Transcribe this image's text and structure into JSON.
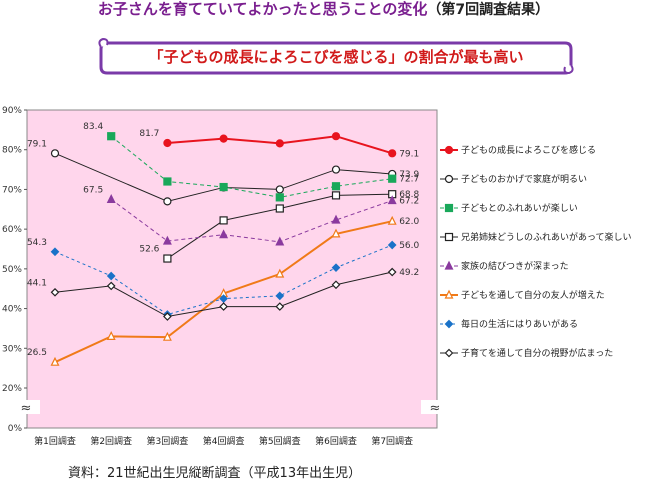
{
  "title": "お子さんを育てていてよかったと思うことの変化",
  "title_suffix": "（第7回調査結果）",
  "banner": "「子どもの成長によろこびを感じる」の割合が最も高い",
  "source": "資料：21世紀出生児縦断調査（平成13年出生児）",
  "colors": {
    "plot_bg": "#ffd6ec",
    "banner_border": "#7a3aa8"
  },
  "chart_data": {
    "type": "line",
    "categories": [
      "第1回調査",
      "第2回調査",
      "第3回調査",
      "第4回調査",
      "第5回調査",
      "第6回調査",
      "第7回調査"
    ],
    "y_ticks": [
      "0%",
      "20%",
      "30%",
      "40%",
      "50%",
      "60%",
      "70%",
      "80%",
      "90%"
    ],
    "axis_break": "≈",
    "ylim": [
      0,
      90
    ],
    "grid": false,
    "legend_position": "right",
    "series": [
      {
        "name": "子どもの成長によろこびを感じる",
        "color": "#e8141e",
        "marker": "circle-filled",
        "dash": "",
        "values": [
          null,
          null,
          81.7,
          82.8,
          81.6,
          83.4,
          79.1
        ],
        "labels": [
          null,
          null,
          "81.7",
          null,
          null,
          null,
          "79.1"
        ]
      },
      {
        "name": "子どものおかげで家庭が明るい",
        "color": "#222222",
        "marker": "circle-open",
        "dash": "",
        "values": [
          79.1,
          null,
          67.0,
          70.5,
          70.0,
          75.0,
          73.9
        ],
        "labels": [
          "79.1",
          null,
          null,
          null,
          null,
          null,
          "73.9"
        ]
      },
      {
        "name": "子どもとのふれあいが楽しい",
        "color": "#19a85a",
        "marker": "square-filled",
        "dash": "4,3",
        "values": [
          null,
          83.4,
          72.0,
          70.6,
          68.0,
          70.8,
          72.7
        ],
        "labels": [
          null,
          "83.4",
          null,
          null,
          null,
          null,
          "72.7"
        ]
      },
      {
        "name": "兄弟姉妹どうしのふれあいがあって楽しい",
        "color": "#222222",
        "marker": "square-open",
        "dash": "",
        "values": [
          null,
          null,
          52.6,
          62.2,
          65.2,
          68.5,
          68.8
        ],
        "labels": [
          null,
          null,
          "52.6",
          null,
          null,
          null,
          "68.8"
        ]
      },
      {
        "name": "家族の結びつきが深まった",
        "color": "#8a3a9e",
        "marker": "triangle-filled",
        "dash": "4,3",
        "values": [
          null,
          67.5,
          57.0,
          58.6,
          56.8,
          62.3,
          67.2
        ],
        "labels": [
          null,
          "67.5",
          null,
          null,
          null,
          null,
          "67.2"
        ]
      },
      {
        "name": "子どもを通して自分の友人が増えた",
        "color": "#f07a18",
        "marker": "triangle-open",
        "dash": "",
        "values": [
          26.5,
          33.0,
          32.8,
          43.8,
          48.7,
          58.8,
          62.0
        ],
        "labels": [
          "26.5",
          null,
          null,
          null,
          null,
          null,
          "62.0"
        ]
      },
      {
        "name": "毎日の生活にはりあいがある",
        "color": "#1a72c8",
        "marker": "diamond-filled",
        "dash": "3,3",
        "values": [
          54.3,
          48.2,
          38.5,
          42.5,
          43.2,
          50.3,
          56.0
        ],
        "labels": [
          "54.3",
          null,
          null,
          null,
          null,
          null,
          "56.0"
        ]
      },
      {
        "name": "子育てを通して自分の視野が広まった",
        "color": "#222222",
        "marker": "diamond-open",
        "dash": "",
        "values": [
          44.1,
          45.7,
          38.0,
          40.5,
          40.5,
          46.0,
          49.2
        ],
        "labels": [
          "44.1",
          null,
          null,
          null,
          null,
          null,
          "49.2"
        ]
      }
    ]
  }
}
